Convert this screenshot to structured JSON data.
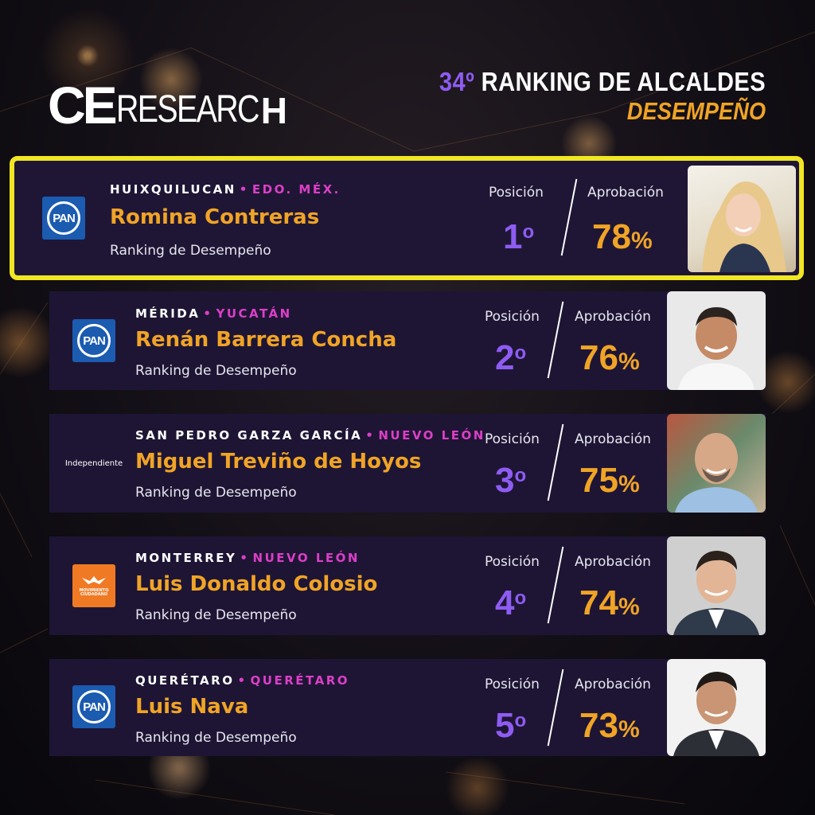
{
  "header": {
    "logo_ce": "CE",
    "logo_research": "RESEARC",
    "logo_mark": "H",
    "title_number": "34º",
    "title_text": "RANKING DE ALCALDES",
    "subtitle": "DESEMPEÑO"
  },
  "labels": {
    "position": "Posición",
    "approval": "Aprobación",
    "ranking": "Ranking de Desempeño",
    "percent": "%"
  },
  "mayors": [
    {
      "city": "HUIXQUILUCAN",
      "state": "EDO. MÉX.",
      "name": "Romina Contreras",
      "position": "1",
      "ordinal": "o",
      "approval": "78",
      "party": "PAN"
    },
    {
      "city": "MÉRIDA",
      "state": "YUCATÁN",
      "name": "Renán Barrera Concha",
      "position": "2",
      "ordinal": "o",
      "approval": "76",
      "party": "PAN"
    },
    {
      "city": "SAN PEDRO GARZA GARCÍA",
      "state": "NUEVO LEÓN",
      "name": "Miguel Treviño de Hoyos",
      "position": "3",
      "ordinal": "o",
      "approval": "75",
      "party": "Independiente"
    },
    {
      "city": "MONTERREY",
      "state": "NUEVO LEÓN",
      "name": "Luis Donaldo Colosio",
      "position": "4",
      "ordinal": "o",
      "approval": "74",
      "party": "MOVIMIENTO CIUDADANO"
    },
    {
      "city": "QUERÉTARO",
      "state": "QUERÉTARO",
      "name": "Luis Nava",
      "position": "5",
      "ordinal": "o",
      "approval": "73",
      "party": "PAN"
    }
  ],
  "colors": {
    "accent_orange": "#f0a426",
    "accent_purple": "#8e5cf2",
    "accent_pink": "#dc3fc7",
    "highlight_yellow": "#f0e623",
    "card_bg": "#1e1535"
  },
  "icons": [
    "pan-logo-icon",
    "movimiento-ciudadano-logo-icon"
  ]
}
